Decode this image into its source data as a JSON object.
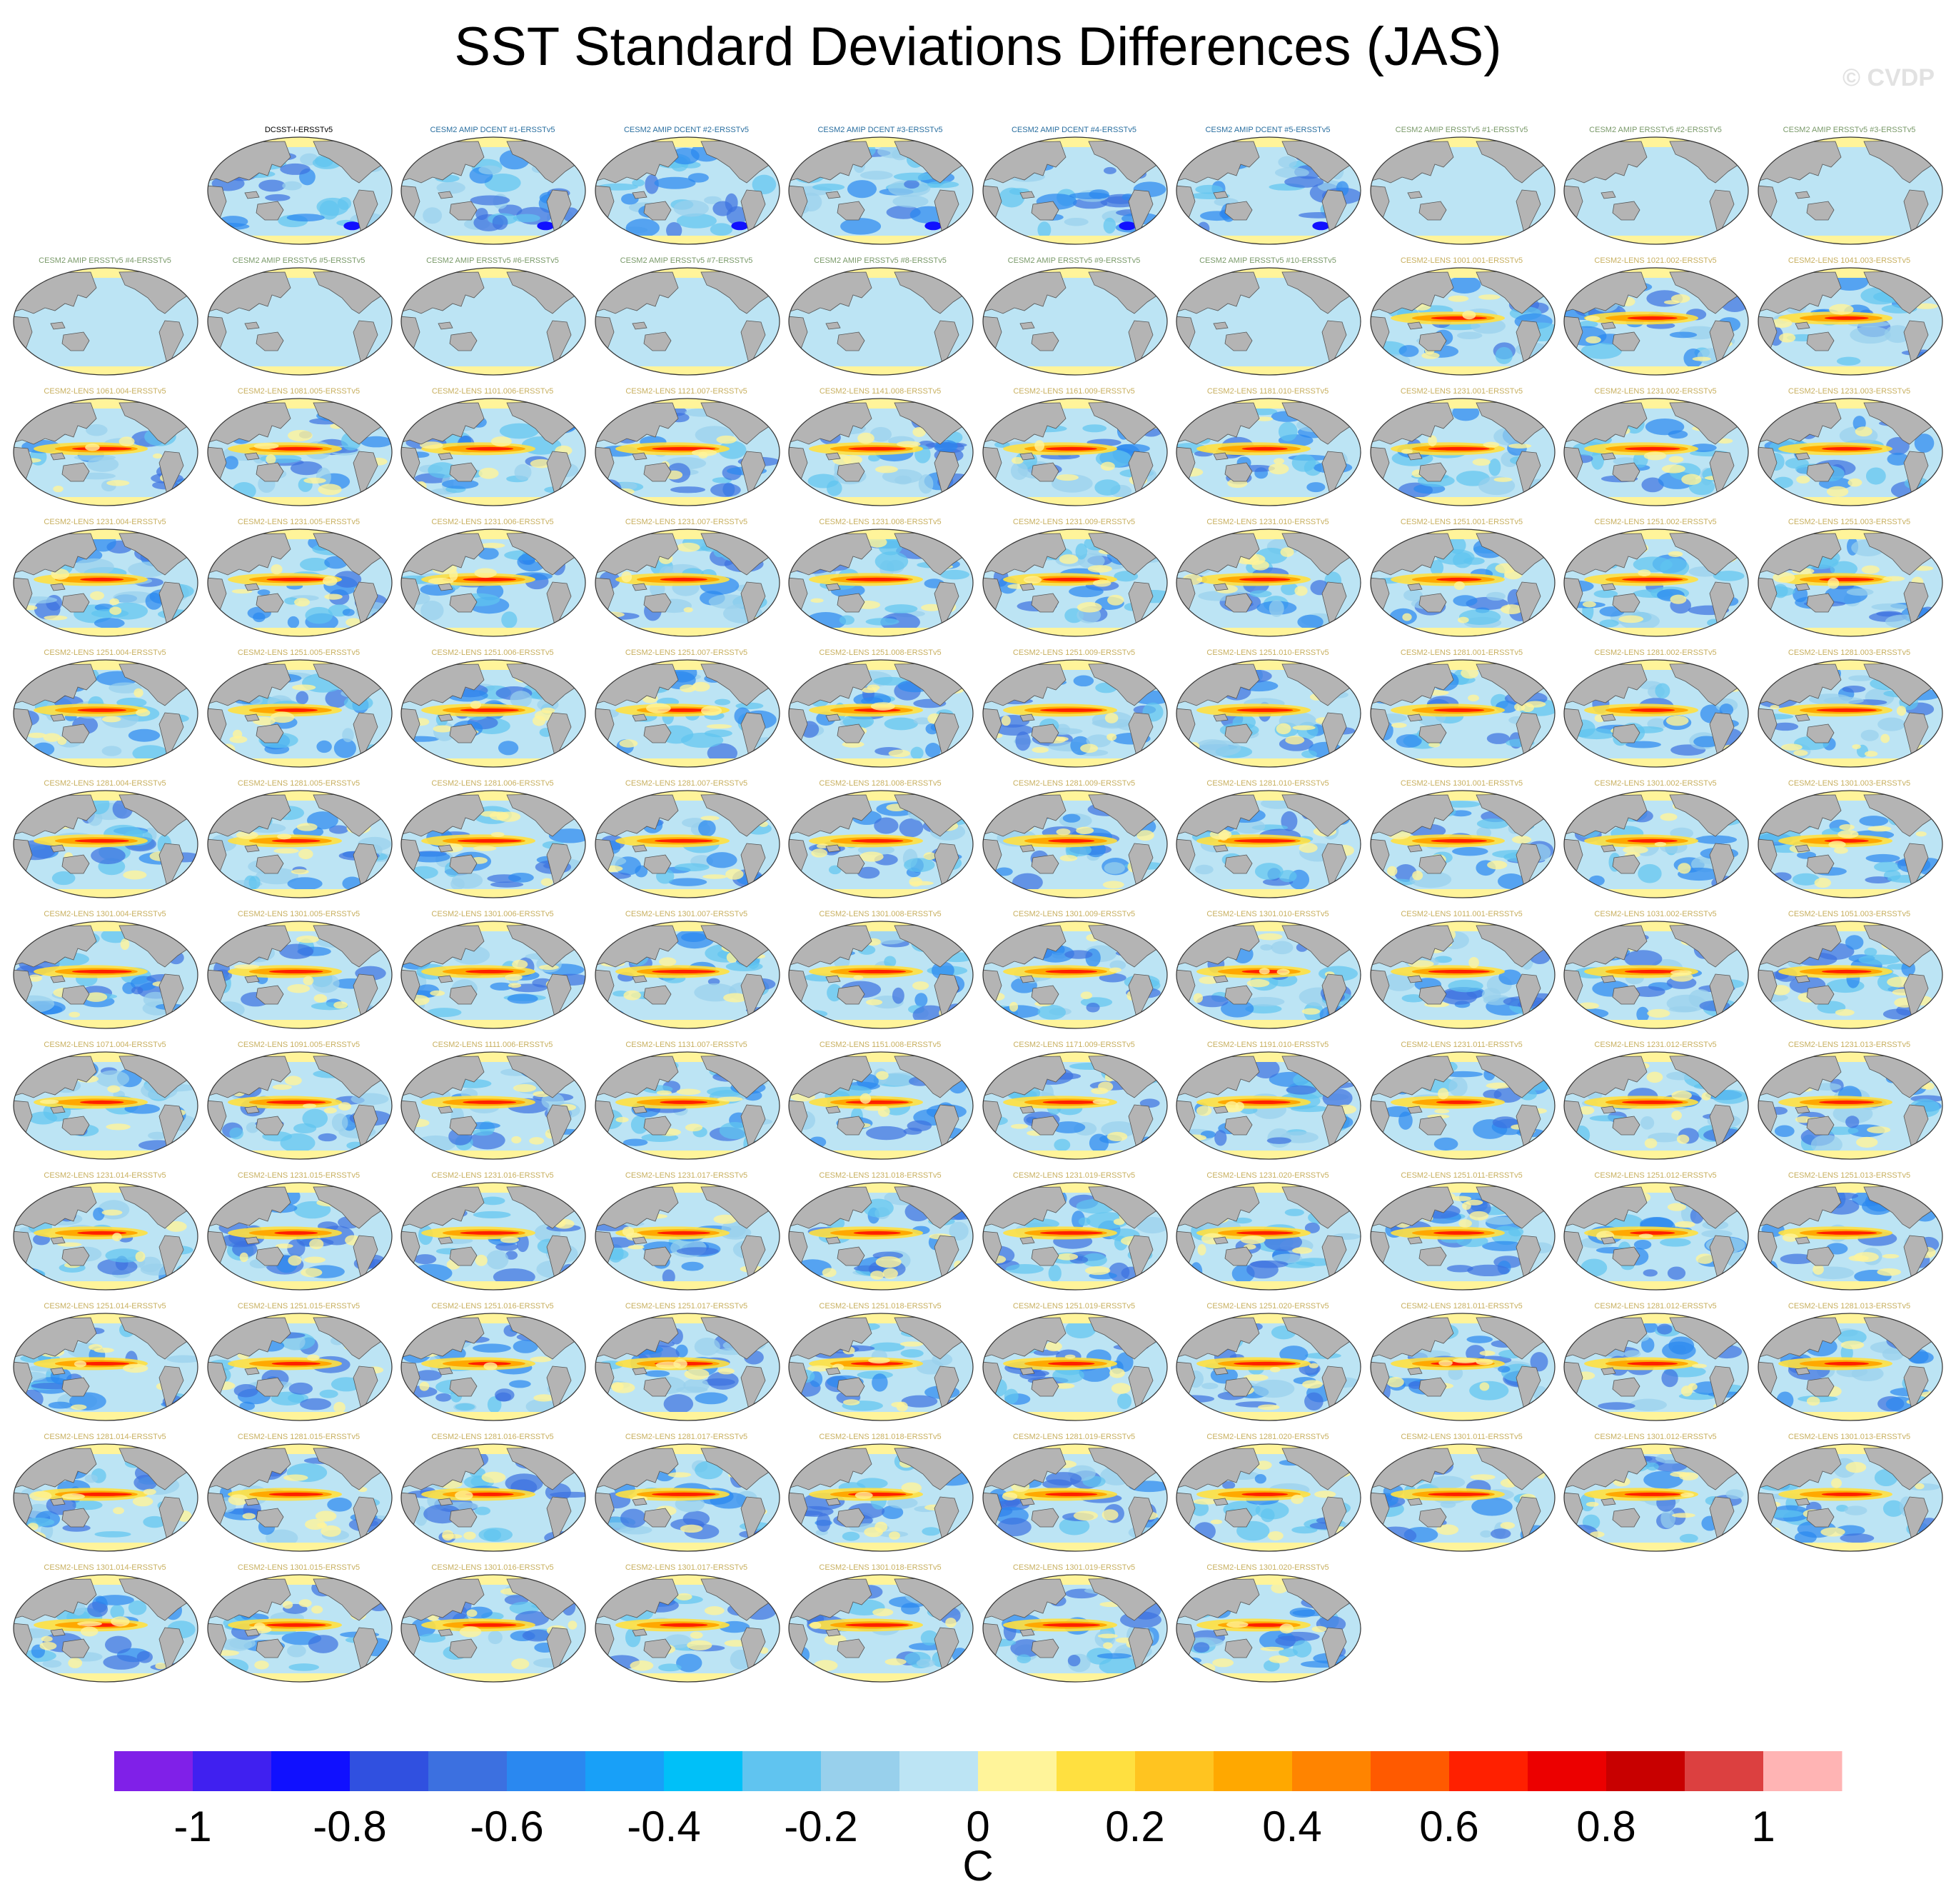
{
  "title": "SST Standard Deviations Differences (JAS)",
  "watermark": "© CVDP",
  "chart_data": {
    "type": "heatmap",
    "title": "SST Standard Deviations Differences (JAS)",
    "projection": "Robinson-like global map panels, Pacific-centered",
    "colorbar": {
      "units": "C",
      "ticks": [
        "-1",
        "-0.8",
        "-0.6",
        "-0.4",
        "-0.2",
        "0",
        "0.2",
        "0.4",
        "0.6",
        "0.8",
        "1"
      ],
      "colors": [
        "#8020e8",
        "#4020f0",
        "#1010ff",
        "#3050e0",
        "#3c70e0",
        "#2a88f0",
        "#18a0f8",
        "#00c0f8",
        "#60c4f0",
        "#98d0ec",
        "#bce4f4",
        "#fff49a",
        "#ffe040",
        "#ffc420",
        "#ffa800",
        "#ff8400",
        "#ff5a00",
        "#ff2000",
        "#ec0000",
        "#c80000",
        "#dc4040",
        "#ffb4b4"
      ]
    },
    "panels": [
      {
        "label": "DCSST-I-ERSSTv5",
        "style": "dcsst"
      },
      {
        "label": "CESM2 AMIP DCENT #1-ERSSTv5",
        "style": "dcent"
      },
      {
        "label": "CESM2 AMIP DCENT #2-ERSSTv5",
        "style": "dcent"
      },
      {
        "label": "CESM2 AMIP DCENT #3-ERSSTv5",
        "style": "dcent"
      },
      {
        "label": "CESM2 AMIP DCENT #4-ERSSTv5",
        "style": "dcent"
      },
      {
        "label": "CESM2 AMIP DCENT #5-ERSSTv5",
        "style": "dcent"
      },
      {
        "label": "CESM2 AMIP ERSSTv5 #1-ERSSTv5",
        "style": "amip"
      },
      {
        "label": "CESM2 AMIP ERSSTv5 #2-ERSSTv5",
        "style": "amip"
      },
      {
        "label": "CESM2 AMIP ERSSTv5 #3-ERSSTv5",
        "style": "amip"
      },
      {
        "label": "CESM2 AMIP ERSSTv5 #4-ERSSTv5",
        "style": "amip"
      },
      {
        "label": "CESM2 AMIP ERSSTv5 #5-ERSSTv5",
        "style": "amip"
      },
      {
        "label": "CESM2 AMIP ERSSTv5 #6-ERSSTv5",
        "style": "amip"
      },
      {
        "label": "CESM2 AMIP ERSSTv5 #7-ERSSTv5",
        "style": "amip"
      },
      {
        "label": "CESM2 AMIP ERSSTv5 #8-ERSSTv5",
        "style": "amip"
      },
      {
        "label": "CESM2 AMIP ERSSTv5 #9-ERSSTv5",
        "style": "amip"
      },
      {
        "label": "CESM2 AMIP ERSSTv5 #10-ERSSTv5",
        "style": "amip"
      },
      {
        "label": "CESM2-LENS 1001.001-ERSSTv5",
        "style": "lens"
      },
      {
        "label": "CESM2-LENS 1021.002-ERSSTv5",
        "style": "lens"
      },
      {
        "label": "CESM2-LENS 1041.003-ERSSTv5",
        "style": "lens"
      },
      {
        "label": "CESM2-LENS 1061.004-ERSSTv5",
        "style": "lens"
      },
      {
        "label": "CESM2-LENS 1081.005-ERSSTv5",
        "style": "lens"
      },
      {
        "label": "CESM2-LENS 1101.006-ERSSTv5",
        "style": "lens"
      },
      {
        "label": "CESM2-LENS 1121.007-ERSSTv5",
        "style": "lens"
      },
      {
        "label": "CESM2-LENS 1141.008-ERSSTv5",
        "style": "lens"
      },
      {
        "label": "CESM2-LENS 1161.009-ERSSTv5",
        "style": "lens"
      },
      {
        "label": "CESM2-LENS 1181.010-ERSSTv5",
        "style": "lens"
      },
      {
        "label": "CESM2-LENS 1231.001-ERSSTv5",
        "style": "lens"
      },
      {
        "label": "CESM2-LENS 1231.002-ERSSTv5",
        "style": "lens"
      },
      {
        "label": "CESM2-LENS 1231.003-ERSSTv5",
        "style": "lens"
      },
      {
        "label": "CESM2-LENS 1231.004-ERSSTv5",
        "style": "lens"
      },
      {
        "label": "CESM2-LENS 1231.005-ERSSTv5",
        "style": "lens"
      },
      {
        "label": "CESM2-LENS 1231.006-ERSSTv5",
        "style": "lens"
      },
      {
        "label": "CESM2-LENS 1231.007-ERSSTv5",
        "style": "lens"
      },
      {
        "label": "CESM2-LENS 1231.008-ERSSTv5",
        "style": "lens"
      },
      {
        "label": "CESM2-LENS 1231.009-ERSSTv5",
        "style": "lens"
      },
      {
        "label": "CESM2-LENS 1231.010-ERSSTv5",
        "style": "lens"
      },
      {
        "label": "CESM2-LENS 1251.001-ERSSTv5",
        "style": "lens"
      },
      {
        "label": "CESM2-LENS 1251.002-ERSSTv5",
        "style": "lens"
      },
      {
        "label": "CESM2-LENS 1251.003-ERSSTv5",
        "style": "lens"
      },
      {
        "label": "CESM2-LENS 1251.004-ERSSTv5",
        "style": "lens"
      },
      {
        "label": "CESM2-LENS 1251.005-ERSSTv5",
        "style": "lens"
      },
      {
        "label": "CESM2-LENS 1251.006-ERSSTv5",
        "style": "lens"
      },
      {
        "label": "CESM2-LENS 1251.007-ERSSTv5",
        "style": "lens"
      },
      {
        "label": "CESM2-LENS 1251.008-ERSSTv5",
        "style": "lens"
      },
      {
        "label": "CESM2-LENS 1251.009-ERSSTv5",
        "style": "lens"
      },
      {
        "label": "CESM2-LENS 1251.010-ERSSTv5",
        "style": "lens"
      },
      {
        "label": "CESM2-LENS 1281.001-ERSSTv5",
        "style": "lens"
      },
      {
        "label": "CESM2-LENS 1281.002-ERSSTv5",
        "style": "lens"
      },
      {
        "label": "CESM2-LENS 1281.003-ERSSTv5",
        "style": "lens"
      },
      {
        "label": "CESM2-LENS 1281.004-ERSSTv5",
        "style": "lens"
      },
      {
        "label": "CESM2-LENS 1281.005-ERSSTv5",
        "style": "lens"
      },
      {
        "label": "CESM2-LENS 1281.006-ERSSTv5",
        "style": "lens"
      },
      {
        "label": "CESM2-LENS 1281.007-ERSSTv5",
        "style": "lens"
      },
      {
        "label": "CESM2-LENS 1281.008-ERSSTv5",
        "style": "lens"
      },
      {
        "label": "CESM2-LENS 1281.009-ERSSTv5",
        "style": "lens"
      },
      {
        "label": "CESM2-LENS 1281.010-ERSSTv5",
        "style": "lens"
      },
      {
        "label": "CESM2-LENS 1301.001-ERSSTv5",
        "style": "lens"
      },
      {
        "label": "CESM2-LENS 1301.002-ERSSTv5",
        "style": "lens"
      },
      {
        "label": "CESM2-LENS 1301.003-ERSSTv5",
        "style": "lens"
      },
      {
        "label": "CESM2-LENS 1301.004-ERSSTv5",
        "style": "lens"
      },
      {
        "label": "CESM2-LENS 1301.005-ERSSTv5",
        "style": "lens"
      },
      {
        "label": "CESM2-LENS 1301.006-ERSSTv5",
        "style": "lens"
      },
      {
        "label": "CESM2-LENS 1301.007-ERSSTv5",
        "style": "lens"
      },
      {
        "label": "CESM2-LENS 1301.008-ERSSTv5",
        "style": "lens"
      },
      {
        "label": "CESM2-LENS 1301.009-ERSSTv5",
        "style": "lens"
      },
      {
        "label": "CESM2-LENS 1301.010-ERSSTv5",
        "style": "lens"
      },
      {
        "label": "CESM2-LENS 1011.001-ERSSTv5",
        "style": "lens"
      },
      {
        "label": "CESM2-LENS 1031.002-ERSSTv5",
        "style": "lens"
      },
      {
        "label": "CESM2-LENS 1051.003-ERSSTv5",
        "style": "lens"
      },
      {
        "label": "CESM2-LENS 1071.004-ERSSTv5",
        "style": "lens"
      },
      {
        "label": "CESM2-LENS 1091.005-ERSSTv5",
        "style": "lens"
      },
      {
        "label": "CESM2-LENS 1111.006-ERSSTv5",
        "style": "lens"
      },
      {
        "label": "CESM2-LENS 1131.007-ERSSTv5",
        "style": "lens"
      },
      {
        "label": "CESM2-LENS 1151.008-ERSSTv5",
        "style": "lens"
      },
      {
        "label": "CESM2-LENS 1171.009-ERSSTv5",
        "style": "lens"
      },
      {
        "label": "CESM2-LENS 1191.010-ERSSTv5",
        "style": "lens"
      },
      {
        "label": "CESM2-LENS 1231.011-ERSSTv5",
        "style": "lens"
      },
      {
        "label": "CESM2-LENS 1231.012-ERSSTv5",
        "style": "lens"
      },
      {
        "label": "CESM2-LENS 1231.013-ERSSTv5",
        "style": "lens"
      },
      {
        "label": "CESM2-LENS 1231.014-ERSSTv5",
        "style": "lens"
      },
      {
        "label": "CESM2-LENS 1231.015-ERSSTv5",
        "style": "lens"
      },
      {
        "label": "CESM2-LENS 1231.016-ERSSTv5",
        "style": "lens"
      },
      {
        "label": "CESM2-LENS 1231.017-ERSSTv5",
        "style": "lens"
      },
      {
        "label": "CESM2-LENS 1231.018-ERSSTv5",
        "style": "lens"
      },
      {
        "label": "CESM2-LENS 1231.019-ERSSTv5",
        "style": "lens"
      },
      {
        "label": "CESM2-LENS 1231.020-ERSSTv5",
        "style": "lens"
      },
      {
        "label": "CESM2-LENS 1251.011-ERSSTv5",
        "style": "lens"
      },
      {
        "label": "CESM2-LENS 1251.012-ERSSTv5",
        "style": "lens"
      },
      {
        "label": "CESM2-LENS 1251.013-ERSSTv5",
        "style": "lens"
      },
      {
        "label": "CESM2-LENS 1251.014-ERSSTv5",
        "style": "lens"
      },
      {
        "label": "CESM2-LENS 1251.015-ERSSTv5",
        "style": "lens"
      },
      {
        "label": "CESM2-LENS 1251.016-ERSSTv5",
        "style": "lens"
      },
      {
        "label": "CESM2-LENS 1251.017-ERSSTv5",
        "style": "lens"
      },
      {
        "label": "CESM2-LENS 1251.018-ERSSTv5",
        "style": "lens"
      },
      {
        "label": "CESM2-LENS 1251.019-ERSSTv5",
        "style": "lens"
      },
      {
        "label": "CESM2-LENS 1251.020-ERSSTv5",
        "style": "lens"
      },
      {
        "label": "CESM2-LENS 1281.011-ERSSTv5",
        "style": "lens"
      },
      {
        "label": "CESM2-LENS 1281.012-ERSSTv5",
        "style": "lens"
      },
      {
        "label": "CESM2-LENS 1281.013-ERSSTv5",
        "style": "lens"
      },
      {
        "label": "CESM2-LENS 1281.014-ERSSTv5",
        "style": "lens"
      },
      {
        "label": "CESM2-LENS 1281.015-ERSSTv5",
        "style": "lens"
      },
      {
        "label": "CESM2-LENS 1281.016-ERSSTv5",
        "style": "lens"
      },
      {
        "label": "CESM2-LENS 1281.017-ERSSTv5",
        "style": "lens"
      },
      {
        "label": "CESM2-LENS 1281.018-ERSSTv5",
        "style": "lens"
      },
      {
        "label": "CESM2-LENS 1281.019-ERSSTv5",
        "style": "lens"
      },
      {
        "label": "CESM2-LENS 1281.020-ERSSTv5",
        "style": "lens"
      },
      {
        "label": "CESM2-LENS 1301.011-ERSSTv5",
        "style": "lens"
      },
      {
        "label": "CESM2-LENS 1301.012-ERSSTv5",
        "style": "lens"
      },
      {
        "label": "CESM2-LENS 1301.013-ERSSTv5",
        "style": "lens"
      },
      {
        "label": "CESM2-LENS 1301.014-ERSSTv5",
        "style": "lens"
      },
      {
        "label": "CESM2-LENS 1301.015-ERSSTv5",
        "style": "lens"
      },
      {
        "label": "CESM2-LENS 1301.016-ERSSTv5",
        "style": "lens"
      },
      {
        "label": "CESM2-LENS 1301.017-ERSSTv5",
        "style": "lens"
      },
      {
        "label": "CESM2-LENS 1301.018-ERSSTv5",
        "style": "lens"
      },
      {
        "label": "CESM2-LENS 1301.019-ERSSTv5",
        "style": "lens"
      },
      {
        "label": "CESM2-LENS 1301.020-ERSSTv5",
        "style": "lens"
      }
    ]
  },
  "label_colors": {
    "dcsst": "#000000",
    "dcent": "#2a6fa0",
    "amip": "#7a9a6a",
    "lens": "#c8b060"
  },
  "map_colors": {
    "land": "#b4b4b4",
    "ocean_base": "#bce4f4",
    "coast": "#555555"
  }
}
